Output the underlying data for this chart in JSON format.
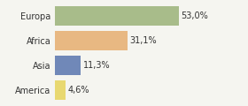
{
  "categories": [
    "Europa",
    "Africa",
    "Asia",
    "America"
  ],
  "values": [
    53.0,
    31.1,
    11.3,
    4.6
  ],
  "labels": [
    "53,0%",
    "31,1%",
    "11,3%",
    "4,6%"
  ],
  "bar_colors": [
    "#a8bc8a",
    "#e8b882",
    "#7088b8",
    "#e8d870"
  ],
  "background_color": "#f5f5f0",
  "xlim": [
    0,
    70
  ],
  "bar_height": 0.78,
  "label_fontsize": 7.0,
  "tick_fontsize": 7.0
}
